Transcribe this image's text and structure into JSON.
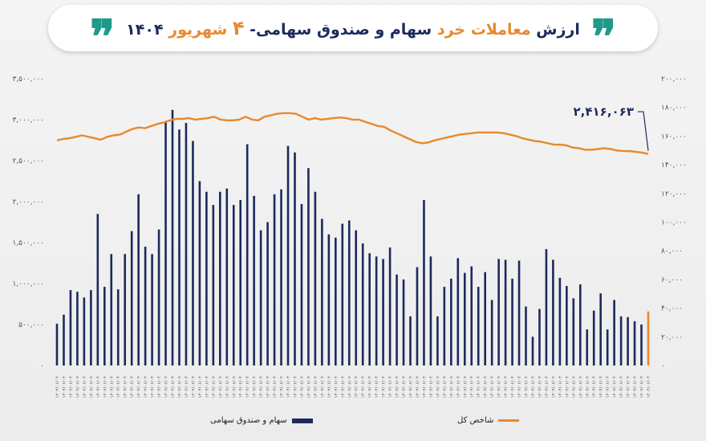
{
  "title": {
    "part1": "ارزش",
    "part2": "معاملات خرد",
    "part3": "سهام و صندوق سهامی-",
    "part4": "۴",
    "part5": "شهریور",
    "part6": "۱۴۰۴",
    "quote_glyph": "❞"
  },
  "colors": {
    "bars": "#1c2a5c",
    "last_bar": "#e8892e",
    "line": "#e8892e",
    "accent": "#e8892e",
    "quote": "#1f9a8a"
  },
  "chart_data": {
    "type": "bar",
    "left_axis": {
      "ticks": [
        "۳,۵۰۰,۰۰۰",
        "۳,۰۰۰,۰۰۰",
        "۲,۵۰۰,۰۰۰",
        "۲,۰۰۰,۰۰۰",
        "۱,۵۰۰,۰۰۰",
        "۱,۰۰۰,۰۰۰",
        "۵۰۰,۰۰۰",
        "۰"
      ],
      "tick_values": [
        3500000,
        3000000,
        2500000,
        2000000,
        1500000,
        1000000,
        500000,
        0
      ],
      "ylim": [
        0,
        3500000
      ]
    },
    "right_axis": {
      "ticks": [
        "۲۰۰,۰۰۰",
        "۱۸۰,۰۰۰",
        "۱۶۰,۰۰۰",
        "۱۴۰,۰۰۰",
        "۱۲۰,۰۰۰",
        "۱۰۰,۰۰۰",
        "۸۰,۰۰۰",
        "۶۰,۰۰۰",
        "۴۰,۰۰۰",
        "۲۰,۰۰۰",
        "۰"
      ],
      "tick_values": [
        200000,
        180000,
        160000,
        140000,
        120000,
        100000,
        80000,
        60000,
        40000,
        20000,
        0
      ],
      "ylim": [
        0,
        200000
      ]
    },
    "x_tick_label": "۱۴۰۴/۰۶/۰۴",
    "series": [
      {
        "name": "سهام و صندوق سهامی",
        "kind": "bar",
        "values": [
          510000,
          620000,
          920000,
          900000,
          830000,
          920000,
          1850000,
          960000,
          1360000,
          930000,
          1360000,
          1640000,
          2090000,
          1450000,
          1360000,
          1660000,
          2980000,
          3120000,
          2880000,
          2960000,
          2740000,
          2250000,
          2120000,
          1960000,
          2120000,
          2160000,
          1960000,
          2020000,
          2700000,
          2070000,
          1650000,
          1750000,
          2090000,
          2150000,
          2680000,
          2600000,
          1970000,
          2410000,
          2120000,
          1790000,
          1600000,
          1560000,
          1730000,
          1770000,
          1650000,
          1490000,
          1370000,
          1330000,
          1300000,
          1440000,
          1110000,
          1050000,
          600000,
          1200000,
          2020000,
          1330000,
          600000,
          960000,
          1060000,
          1310000,
          1130000,
          1210000,
          960000,
          1140000,
          800000,
          1300000,
          1290000,
          1060000,
          1280000,
          720000,
          350000,
          690000,
          1420000,
          1290000,
          1070000,
          970000,
          820000,
          990000,
          440000,
          670000,
          880000,
          440000,
          800000,
          600000,
          590000,
          540000,
          500000
        ],
        "last_value": 660000
      },
      {
        "name": "شاخص کل",
        "kind": "line",
        "values": [
          157000,
          158000,
          158500,
          159500,
          160500,
          159500,
          158500,
          157500,
          159500,
          160500,
          161000,
          163000,
          165000,
          166000,
          165500,
          167000,
          168500,
          169500,
          171000,
          172000,
          172000,
          172500,
          171500,
          172000,
          172500,
          173500,
          171500,
          171000,
          171000,
          171500,
          173500,
          171500,
          171000,
          173500,
          174500,
          175500,
          176000,
          176000,
          175500,
          173500,
          171500,
          172500,
          171500,
          172000,
          172500,
          173000,
          172500,
          171500,
          171500,
          170000,
          168500,
          167000,
          166500,
          164000,
          162000,
          160000,
          158000,
          156000,
          155000,
          155500,
          157000,
          158000,
          159000,
          160000,
          161000,
          161500,
          162000,
          162500,
          162500,
          162500,
          162500,
          162000,
          161000,
          160000,
          158500,
          157500,
          156500,
          156000,
          155000,
          154000,
          154000,
          153500,
          152000,
          151500,
          150500,
          150500,
          151000,
          151500,
          151000,
          150000,
          149500,
          149500,
          149000,
          148500,
          147500
        ],
        "annotation": "۲,۴۱۶,۰۶۳",
        "annotation_y": 177000
      }
    ]
  },
  "legend": {
    "bars_label": "سهام و صندوق سهامی",
    "line_label": "شاخص کل"
  }
}
